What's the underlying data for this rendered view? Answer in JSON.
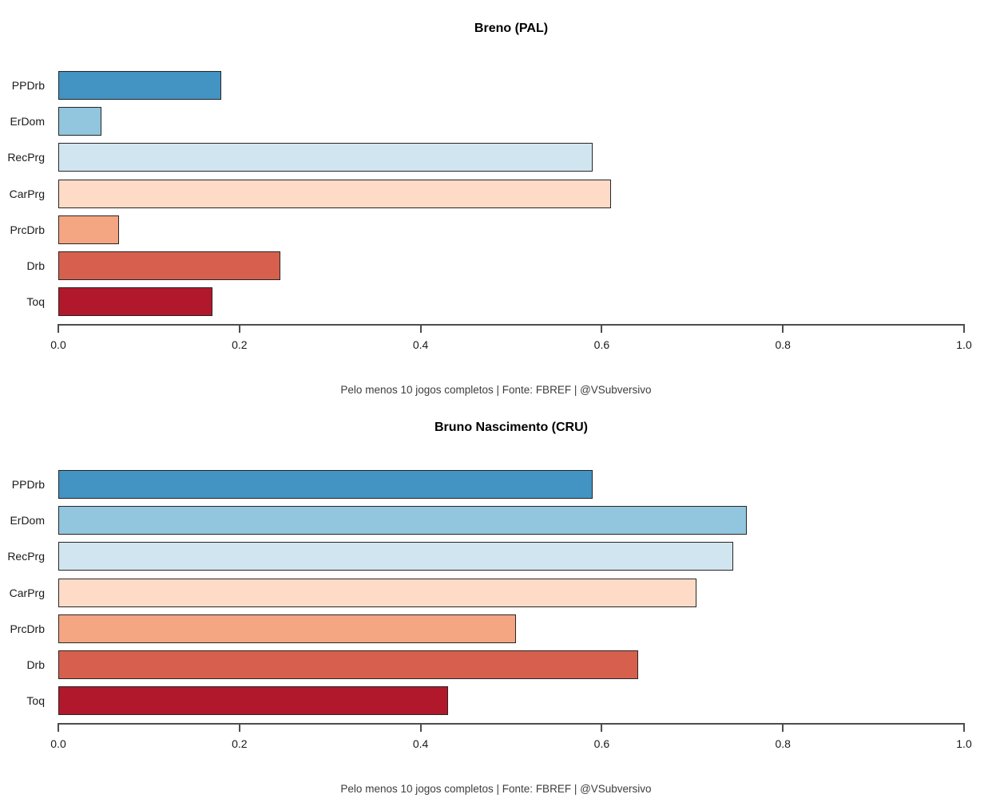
{
  "page": {
    "background_color": "#ffffff",
    "text_color": "#1a1a1a",
    "axis_color": "#4d4d4d",
    "bar_border_color": "#262626"
  },
  "chart_data": [
    {
      "type": "bar",
      "orientation": "horizontal",
      "title": "Breno (PAL)",
      "caption": "Pelo menos 10 jogos completos | Fonte: FBREF | @VSubversivo",
      "categories": [
        "PPDrb",
        "ErDom",
        "RecPrg",
        "CarPrg",
        "PrcDrb",
        "Drb",
        "Toq"
      ],
      "values": [
        0.18,
        0.048,
        0.59,
        0.61,
        0.067,
        0.245,
        0.17
      ],
      "bar_colors": [
        "#4393c3",
        "#92c5de",
        "#d1e5f0",
        "#fddbc7",
        "#f4a582",
        "#d6604d",
        "#b2182b"
      ],
      "xlabel": "",
      "ylabel": "",
      "xlim": [
        0,
        1
      ],
      "x_ticks": [
        "0.0",
        "0.2",
        "0.4",
        "0.6",
        "0.8",
        "1.0"
      ],
      "x_tick_values": [
        0,
        0.2,
        0.4,
        0.6,
        0.8,
        1.0
      ],
      "grid": false,
      "legend": "none"
    },
    {
      "type": "bar",
      "orientation": "horizontal",
      "title": "Bruno Nascimento (CRU)",
      "caption": "Pelo menos 10 jogos completos | Fonte: FBREF | @VSubversivo",
      "categories": [
        "PPDrb",
        "ErDom",
        "RecPrg",
        "CarPrg",
        "PrcDrb",
        "Drb",
        "Toq"
      ],
      "values": [
        0.59,
        0.76,
        0.745,
        0.705,
        0.505,
        0.64,
        0.43
      ],
      "bar_colors": [
        "#4393c3",
        "#92c5de",
        "#d1e5f0",
        "#fddbc7",
        "#f4a582",
        "#d6604d",
        "#b2182b"
      ],
      "xlabel": "",
      "ylabel": "",
      "xlim": [
        0,
        1
      ],
      "x_ticks": [
        "0.0",
        "0.2",
        "0.4",
        "0.6",
        "0.8",
        "1.0"
      ],
      "x_tick_values": [
        0,
        0.2,
        0.4,
        0.6,
        0.8,
        1.0
      ],
      "grid": false,
      "legend": "none"
    }
  ]
}
